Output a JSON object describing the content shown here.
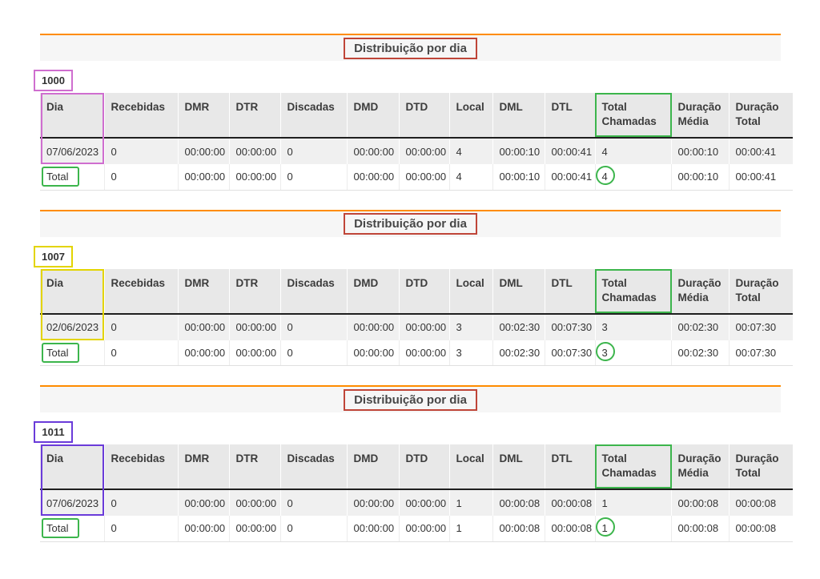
{
  "colors": {
    "accent_line": "#ff8c00",
    "title_border": "#bf4538",
    "green_highlight": "#3cb54c"
  },
  "section_title": "Distribuição por dia",
  "columns": [
    "Dia",
    "Recebidas",
    "DMR",
    "DTR",
    "Discadas",
    "DMD",
    "DTD",
    "Local",
    "DML",
    "DTL",
    "Total Chamadas",
    "Duração Média",
    "Duração Total"
  ],
  "tables": [
    {
      "extension": "1000",
      "highlight_color": "#cf6ecf",
      "rows": [
        [
          "07/06/2023",
          "0",
          "00:00:00",
          "00:00:00",
          "0",
          "00:00:00",
          "00:00:00",
          "4",
          "00:00:10",
          "00:00:41",
          "4",
          "00:00:10",
          "00:00:41"
        ]
      ],
      "total_row": [
        "Total",
        "0",
        "00:00:00",
        "00:00:00",
        "0",
        "00:00:00",
        "00:00:00",
        "4",
        "00:00:10",
        "00:00:41",
        "4",
        "00:00:10",
        "00:00:41"
      ]
    },
    {
      "extension": "1007",
      "highlight_color": "#e3d400",
      "rows": [
        [
          "02/06/2023",
          "0",
          "00:00:00",
          "00:00:00",
          "0",
          "00:00:00",
          "00:00:00",
          "3",
          "00:02:30",
          "00:07:30",
          "3",
          "00:02:30",
          "00:07:30"
        ]
      ],
      "total_row": [
        "Total",
        "0",
        "00:00:00",
        "00:00:00",
        "0",
        "00:00:00",
        "00:00:00",
        "3",
        "00:02:30",
        "00:07:30",
        "3",
        "00:02:30",
        "00:07:30"
      ]
    },
    {
      "extension": "1011",
      "highlight_color": "#6a3bd9",
      "rows": [
        [
          "07/06/2023",
          "0",
          "00:00:00",
          "00:00:00",
          "0",
          "00:00:00",
          "00:00:00",
          "1",
          "00:00:08",
          "00:00:08",
          "1",
          "00:00:08",
          "00:00:08"
        ]
      ],
      "total_row": [
        "Total",
        "0",
        "00:00:00",
        "00:00:00",
        "0",
        "00:00:00",
        "00:00:00",
        "1",
        "00:00:08",
        "00:00:08",
        "1",
        "00:00:08",
        "00:00:08"
      ]
    }
  ]
}
